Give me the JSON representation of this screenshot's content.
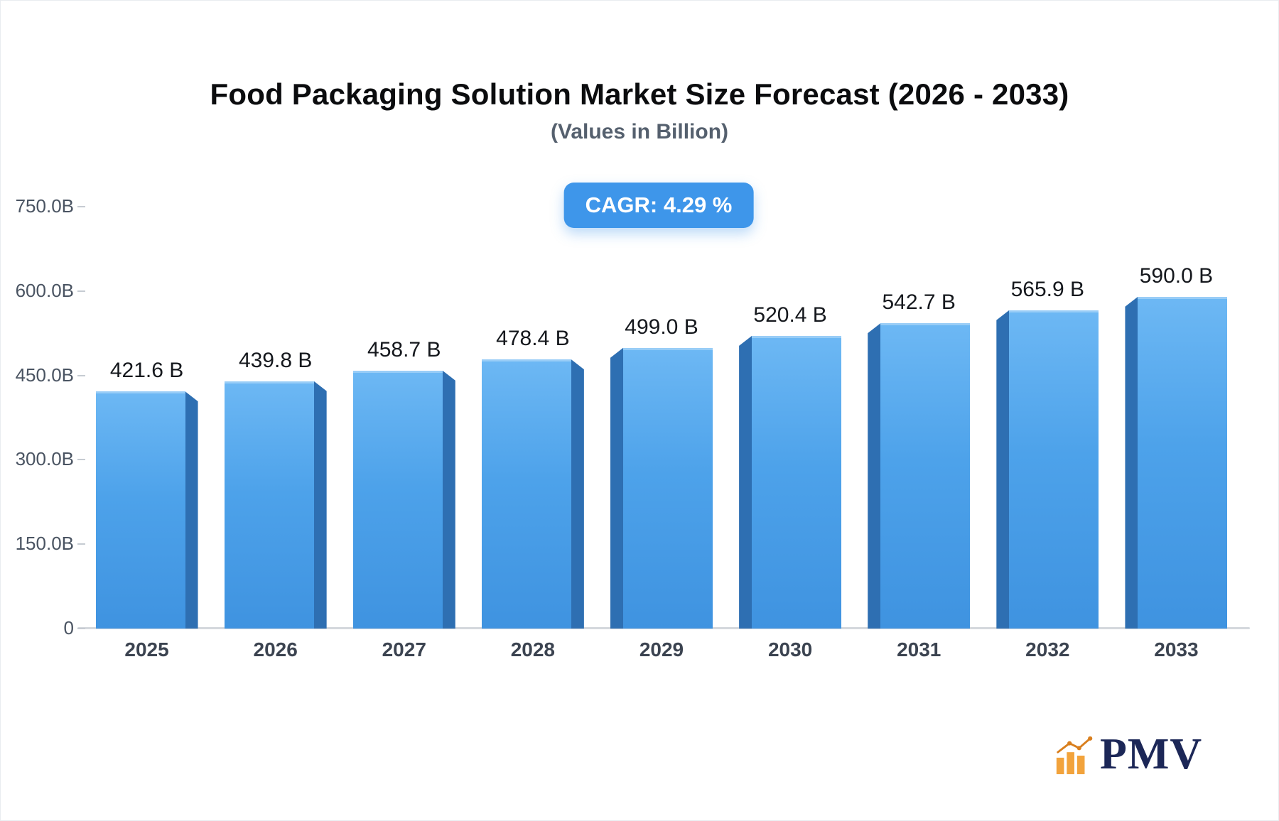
{
  "header": {
    "title": "Food Packaging Solution Market Size Forecast (2026 - 2033)",
    "subtitle": "(Values in Billion)"
  },
  "badge": {
    "label": "CAGR: 4.29 %"
  },
  "chart_data": {
    "type": "bar",
    "title": "Food Packaging Solution Market Size Forecast (2026 - 2033)",
    "subtitle": "(Values in Billion)",
    "unit": "Billion",
    "cagr_percent": 4.29,
    "categories": [
      "2025",
      "2026",
      "2027",
      "2028",
      "2029",
      "2030",
      "2031",
      "2032",
      "2033"
    ],
    "values": [
      421.6,
      439.8,
      458.7,
      478.4,
      499.0,
      520.4,
      542.7,
      565.9,
      590.0
    ],
    "value_labels": [
      "421.6 B",
      "439.8 B",
      "458.7 B",
      "478.4 B",
      "499.0 B",
      "520.4 B",
      "542.7 B",
      "565.9 B",
      "590.0 B"
    ],
    "xlabel": "",
    "ylabel": "",
    "ylim": [
      0,
      750
    ],
    "ytick_values": [
      0,
      150,
      300,
      450,
      600,
      750
    ],
    "ytick_labels": [
      "0",
      "150.0B",
      "300.0B",
      "450.0B",
      "600.0B",
      "750.0B"
    ],
    "grid": false,
    "legend": "none",
    "colors": {
      "bar_top": "#6db8f4",
      "bar_bottom": "#3f93e0",
      "bar_side": "#2e6fb2",
      "badge": "#3e96ea"
    }
  },
  "logo": {
    "text": "PMV",
    "icon": "bar-chart-icon",
    "icon_color": "#f2a33c",
    "text_color": "#1c2757"
  }
}
